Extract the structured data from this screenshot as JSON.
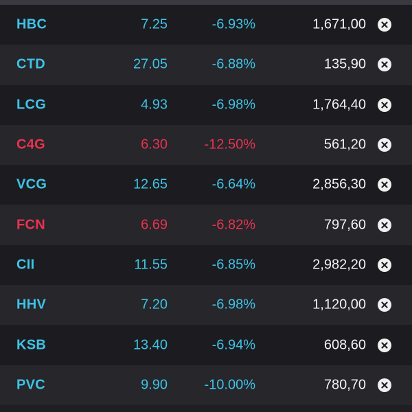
{
  "colors": {
    "floor": "#3fc3e6",
    "down": "#e8334f",
    "volume": "#f2f2f2",
    "background": "#1f1f23"
  },
  "rows": [
    {
      "symbol": "HBC",
      "price": "7.25",
      "change": "-6.93%",
      "volume": "1,671,00",
      "color": "floor",
      "remove_icon": "close-circle-icon"
    },
    {
      "symbol": "CTD",
      "price": "27.05",
      "change": "-6.88%",
      "volume": "135,90",
      "color": "floor",
      "remove_icon": "close-circle-icon"
    },
    {
      "symbol": "LCG",
      "price": "4.93",
      "change": "-6.98%",
      "volume": "1,764,40",
      "color": "floor",
      "remove_icon": "close-circle-icon"
    },
    {
      "symbol": "C4G",
      "price": "6.30",
      "change": "-12.50%",
      "volume": "561,20",
      "color": "down",
      "remove_icon": "close-circle-icon"
    },
    {
      "symbol": "VCG",
      "price": "12.65",
      "change": "-6.64%",
      "volume": "2,856,30",
      "color": "floor",
      "remove_icon": "close-circle-icon"
    },
    {
      "symbol": "FCN",
      "price": "6.69",
      "change": "-6.82%",
      "volume": "797,60",
      "color": "down",
      "remove_icon": "close-circle-icon"
    },
    {
      "symbol": "CII",
      "price": "11.55",
      "change": "-6.85%",
      "volume": "2,982,20",
      "color": "floor",
      "remove_icon": "close-circle-icon"
    },
    {
      "symbol": "HHV",
      "price": "7.20",
      "change": "-6.98%",
      "volume": "1,120,00",
      "color": "floor",
      "remove_icon": "close-circle-icon"
    },
    {
      "symbol": "KSB",
      "price": "13.40",
      "change": "-6.94%",
      "volume": "608,60",
      "color": "floor",
      "remove_icon": "close-circle-icon"
    },
    {
      "symbol": "PVC",
      "price": "9.90",
      "change": "-10.00%",
      "volume": "780,70",
      "color": "floor",
      "remove_icon": "close-circle-icon"
    }
  ]
}
